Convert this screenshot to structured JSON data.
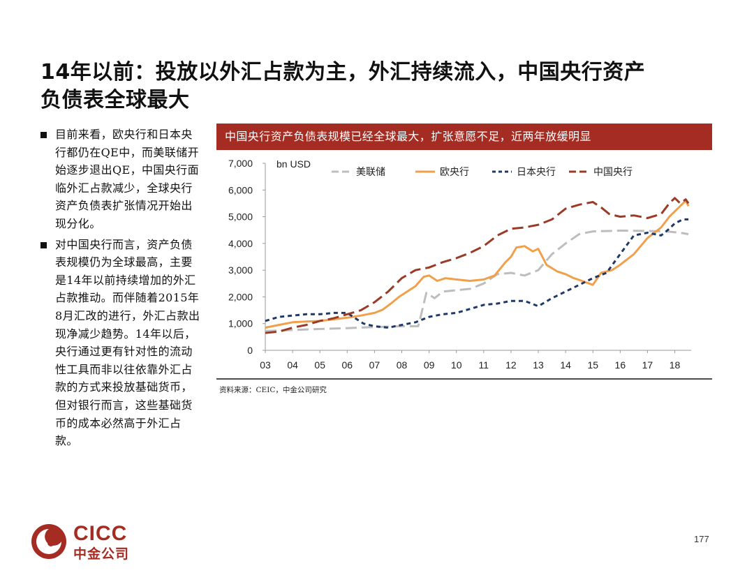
{
  "title_line1": "14年以前：投放以外汇占款为主，外汇持续流入，中国央行资产",
  "title_line2": "负债表全球最大",
  "bullets": [
    "目前来看，欧央行和日本央行都仍在QE中，而美联储开始逐步退出QE，中国央行面临外汇占款减少，全球央行资产负债表扩张情况开始出现分化。",
    "对中国央行而言，资产负债表规模仍为全球最高，主要是14年以前持续增加的外汇占款推动。而伴随着2015年8月汇改的进行，外汇占款出现净减少趋势。14年以后，央行通过更有针对性的流动性工具而非以往依靠外汇占款的方式来投放基础货币，但对银行而言，这些基础货币的成本必然高于外汇占款。"
  ],
  "chart_banner": "中国央行资产负债表规模已经全球最大，扩张意愿不足，近两年放缓明显",
  "source": "资料来源：CEIC，中金公司研究",
  "logo": {
    "en": "CICC",
    "cn": "中金公司"
  },
  "page_number": "177",
  "colors": {
    "brand_red": "#a42c22",
    "fed": "#bdbdbd",
    "ecb": "#f0a04b",
    "boj": "#1f3a66",
    "pboc": "#9b3a26"
  },
  "chart_data": {
    "type": "line",
    "title": "",
    "xlabel": "",
    "ylabel": "bn USD",
    "ylim": [
      0,
      7000
    ],
    "yticks": [
      0,
      1000,
      2000,
      3000,
      4000,
      5000,
      6000,
      7000
    ],
    "ytick_labels": [
      "0",
      "1,000",
      "2,000",
      "3,000",
      "4,000",
      "5,000",
      "6,000",
      "7,000"
    ],
    "xlim": [
      2003.0,
      2018.6
    ],
    "xticks": [
      2003,
      2004,
      2005,
      2006,
      2007,
      2008,
      2009,
      2010,
      2011,
      2012,
      2013,
      2014,
      2015,
      2016,
      2017,
      2018
    ],
    "xtick_labels": [
      "03",
      "04",
      "05",
      "06",
      "07",
      "08",
      "09",
      "10",
      "11",
      "12",
      "13",
      "14",
      "15",
      "16",
      "17",
      "18"
    ],
    "legend_position": "top",
    "series": [
      {
        "name": "美联储",
        "style": "long-dash",
        "color": "#bdbdbd",
        "x": [
          2003.0,
          2004.0,
          2005.0,
          2006.0,
          2007.0,
          2007.6,
          2008.0,
          2008.6,
          2008.7,
          2008.9,
          2009.2,
          2009.5,
          2010.0,
          2010.5,
          2011.0,
          2011.5,
          2012.0,
          2012.5,
          2013.0,
          2013.5,
          2014.0,
          2014.5,
          2015.0,
          2016.0,
          2017.0,
          2017.8,
          2018.2,
          2018.5
        ],
        "y": [
          720,
          760,
          800,
          830,
          870,
          890,
          900,
          905,
          1300,
          2150,
          1950,
          2200,
          2250,
          2300,
          2500,
          2850,
          2900,
          2800,
          3000,
          3600,
          4000,
          4350,
          4450,
          4480,
          4470,
          4440,
          4400,
          4350
        ]
      },
      {
        "name": "欧央行",
        "style": "solid",
        "color": "#f0a04b",
        "x": [
          2003.0,
          2003.5,
          2004.0,
          2004.5,
          2005.0,
          2005.5,
          2006.0,
          2006.5,
          2007.0,
          2007.3,
          2007.6,
          2007.9,
          2008.2,
          2008.5,
          2008.8,
          2009.0,
          2009.3,
          2009.6,
          2010.0,
          2010.5,
          2011.0,
          2011.4,
          2011.8,
          2012.0,
          2012.2,
          2012.5,
          2012.8,
          2013.0,
          2013.3,
          2013.7,
          2014.0,
          2014.3,
          2014.6,
          2015.0,
          2015.3,
          2015.7,
          2016.0,
          2016.5,
          2017.0,
          2017.5,
          2017.8,
          2018.0,
          2018.2,
          2018.4,
          2018.5
        ],
        "y": [
          850,
          950,
          1050,
          1080,
          1100,
          1160,
          1220,
          1300,
          1400,
          1520,
          1750,
          2000,
          2200,
          2400,
          2750,
          2800,
          2600,
          2700,
          2650,
          2600,
          2650,
          2800,
          3300,
          3500,
          3850,
          3900,
          3700,
          3800,
          3200,
          2950,
          2850,
          2700,
          2600,
          2450,
          2900,
          3000,
          3200,
          3600,
          4200,
          4600,
          5000,
          5200,
          5400,
          5600,
          5400
        ]
      },
      {
        "name": "日本央行",
        "style": "dashed",
        "color": "#1f3a66",
        "x": [
          2003.0,
          2003.5,
          2004.0,
          2004.5,
          2005.0,
          2005.5,
          2006.0,
          2006.3,
          2006.6,
          2007.0,
          2007.5,
          2008.0,
          2008.5,
          2009.0,
          2009.5,
          2010.0,
          2010.5,
          2011.0,
          2011.5,
          2012.0,
          2012.5,
          2013.0,
          2013.5,
          2014.0,
          2014.5,
          2015.0,
          2015.5,
          2016.0,
          2016.5,
          2017.0,
          2017.5,
          2017.8,
          2018.0,
          2018.3,
          2018.5
        ],
        "y": [
          1100,
          1250,
          1300,
          1350,
          1350,
          1400,
          1400,
          1200,
          1000,
          900,
          850,
          950,
          1050,
          1250,
          1350,
          1400,
          1550,
          1700,
          1750,
          1850,
          1850,
          1650,
          1950,
          2200,
          2450,
          2700,
          2900,
          3600,
          4300,
          4400,
          4300,
          4550,
          4750,
          4900,
          4900
        ]
      },
      {
        "name": "中国央行",
        "style": "long-dash",
        "color": "#9b3a26",
        "x": [
          2003.0,
          2003.5,
          2004.0,
          2004.5,
          2005.0,
          2005.5,
          2006.0,
          2006.5,
          2007.0,
          2007.5,
          2008.0,
          2008.5,
          2009.0,
          2009.5,
          2010.0,
          2010.5,
          2011.0,
          2011.5,
          2012.0,
          2012.5,
          2013.0,
          2013.5,
          2014.0,
          2014.5,
          2015.0,
          2015.3,
          2015.6,
          2016.0,
          2016.5,
          2017.0,
          2017.5,
          2017.8,
          2018.0,
          2018.2,
          2018.4,
          2018.5
        ],
        "y": [
          650,
          700,
          850,
          950,
          1100,
          1200,
          1350,
          1500,
          1800,
          2200,
          2700,
          3000,
          3100,
          3300,
          3450,
          3650,
          3900,
          4300,
          4550,
          4600,
          4700,
          4900,
          5300,
          5450,
          5550,
          5350,
          5100,
          5000,
          5050,
          4950,
          5100,
          5500,
          5700,
          5500,
          5650,
          5500
        ]
      }
    ]
  }
}
